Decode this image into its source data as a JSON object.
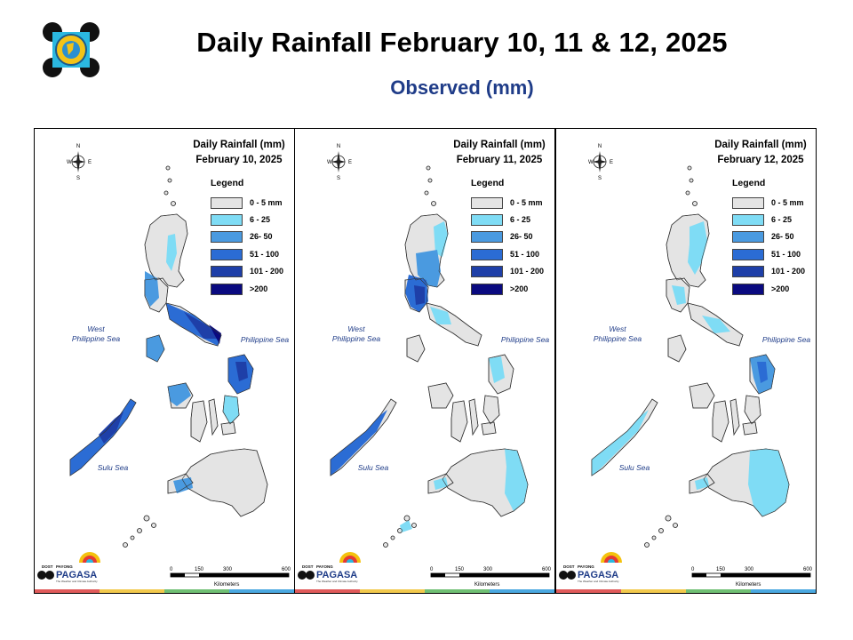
{
  "header": {
    "title": "Daily Rainfall February 10, 11 & 12, 2025",
    "subtitle": "Observed (mm)"
  },
  "legend": {
    "title": "Legend",
    "items": [
      {
        "label": "0 - 5 mm",
        "color": "#e4e4e4"
      },
      {
        "label": "6 - 25",
        "color": "#7fdcf5"
      },
      {
        "label": "26- 50",
        "color": "#4a9ae0"
      },
      {
        "label": "51 - 100",
        "color": "#2b6cd4"
      },
      {
        "label": "101 - 200",
        "color": "#1e3fa8"
      },
      {
        "label": ">200",
        "color": "#0a0a80"
      }
    ]
  },
  "labels": {
    "west_sea_1": "West",
    "west_sea_2": "Philippine Sea",
    "philippine_sea": "Philippine Sea",
    "sulu_sea": "Sulu Sea",
    "scale_0": "0",
    "scale_150": "150",
    "scale_300": "300",
    "scale_600": "600",
    "scale_unit": "Kilometers",
    "compass_n": "N",
    "compass_s": "S",
    "compass_e": "E",
    "compass_w": "W",
    "dost": "DOST",
    "payong": "PAYONG",
    "pagasa": "PAGASA",
    "pagasa_tagline": "The Weather and Climate Authority"
  },
  "panels": [
    {
      "title_1": "Daily Rainfall (mm)",
      "title_2": "February 10, 2025"
    },
    {
      "title_1": "Daily Rainfall (mm)",
      "title_2": "February 11, 2025"
    },
    {
      "title_1": "Daily Rainfall (mm)",
      "title_2": "February 12, 2025"
    }
  ]
}
